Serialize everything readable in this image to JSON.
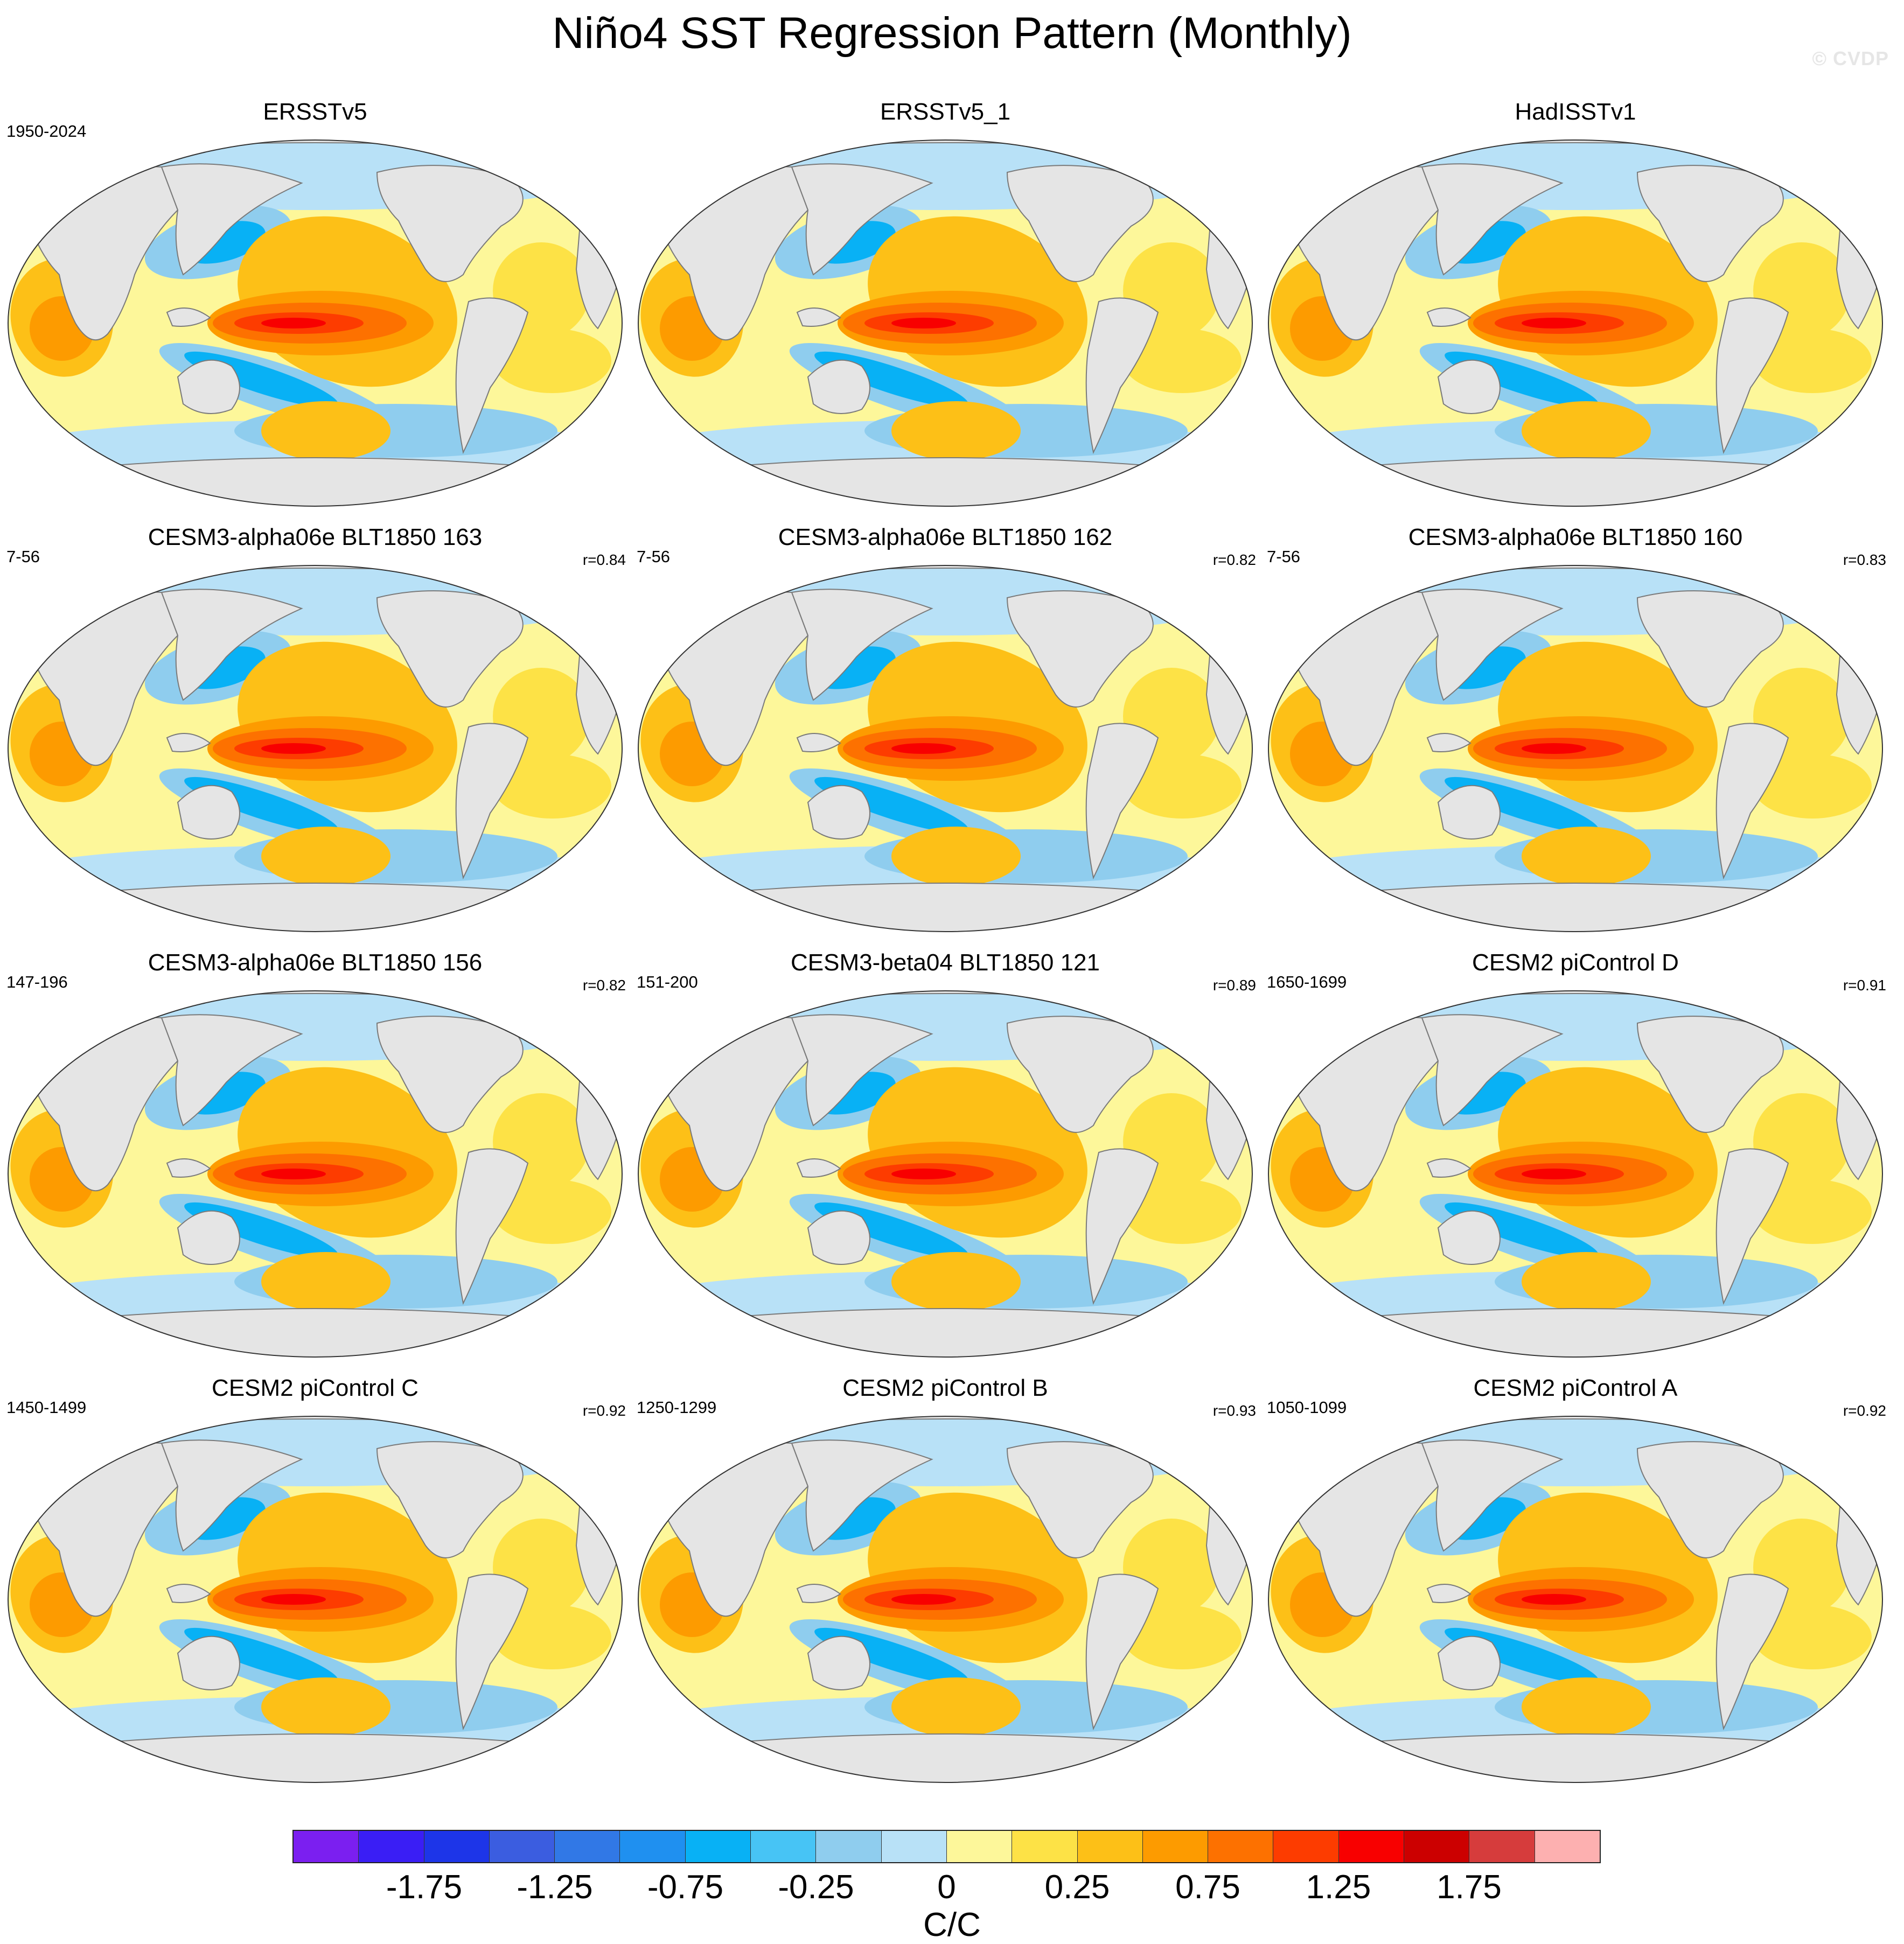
{
  "header": {
    "title": "Niño4 SST Regression Pattern (Monthly)",
    "watermark": "© CVDP"
  },
  "chart_data": {
    "type": "heatmap",
    "title": "Niño4 SST Regression Pattern (Monthly)",
    "projection": "Robinson global map",
    "units": "C/C",
    "panels": [
      {
        "title": "ERSSTv5",
        "years": "1950-2024",
        "r": ""
      },
      {
        "title": "ERSSTv5_1",
        "years": "",
        "r": ""
      },
      {
        "title": "HadISSTv1",
        "years": "",
        "r": ""
      },
      {
        "title": "CESM3-alpha06e BLT1850 163",
        "years": "7-56",
        "r": "r=0.84"
      },
      {
        "title": "CESM3-alpha06e BLT1850 162",
        "years": "7-56",
        "r": "r=0.82"
      },
      {
        "title": "CESM3-alpha06e BLT1850 160",
        "years": "7-56",
        "r": "r=0.83"
      },
      {
        "title": "CESM3-alpha06e BLT1850 156",
        "years": "147-196",
        "r": "r=0.82"
      },
      {
        "title": "CESM3-beta04 BLT1850 121",
        "years": "151-200",
        "r": "r=0.89"
      },
      {
        "title": "CESM2 piControl D",
        "years": "1650-1699",
        "r": "r=0.91"
      },
      {
        "title": "CESM2 piControl C",
        "years": "1450-1499",
        "r": "r=0.92"
      },
      {
        "title": "CESM2 piControl B",
        "years": "1250-1299",
        "r": "r=0.93"
      },
      {
        "title": "CESM2 piControl A",
        "years": "1050-1099",
        "r": "r=0.92"
      }
    ],
    "colorbar": {
      "colors": [
        "#7b1ff0",
        "#3a1ef5",
        "#1d35e8",
        "#3b5de0",
        "#3178e6",
        "#1f90f0",
        "#08b1f5",
        "#47c4f5",
        "#8fcdee",
        "#b8e1f7",
        "#fdf79a",
        "#fde246",
        "#fdc017",
        "#fd9b00",
        "#fd7100",
        "#fd3c00",
        "#f80000",
        "#cc0000",
        "#d63c3c",
        "#fdb0b0"
      ],
      "tick_labels": [
        "-1.75",
        "-1.25",
        "-0.75",
        "-0.25",
        "0",
        "0.25",
        "0.75",
        "1.25",
        "1.75"
      ],
      "units": "C/C"
    }
  }
}
